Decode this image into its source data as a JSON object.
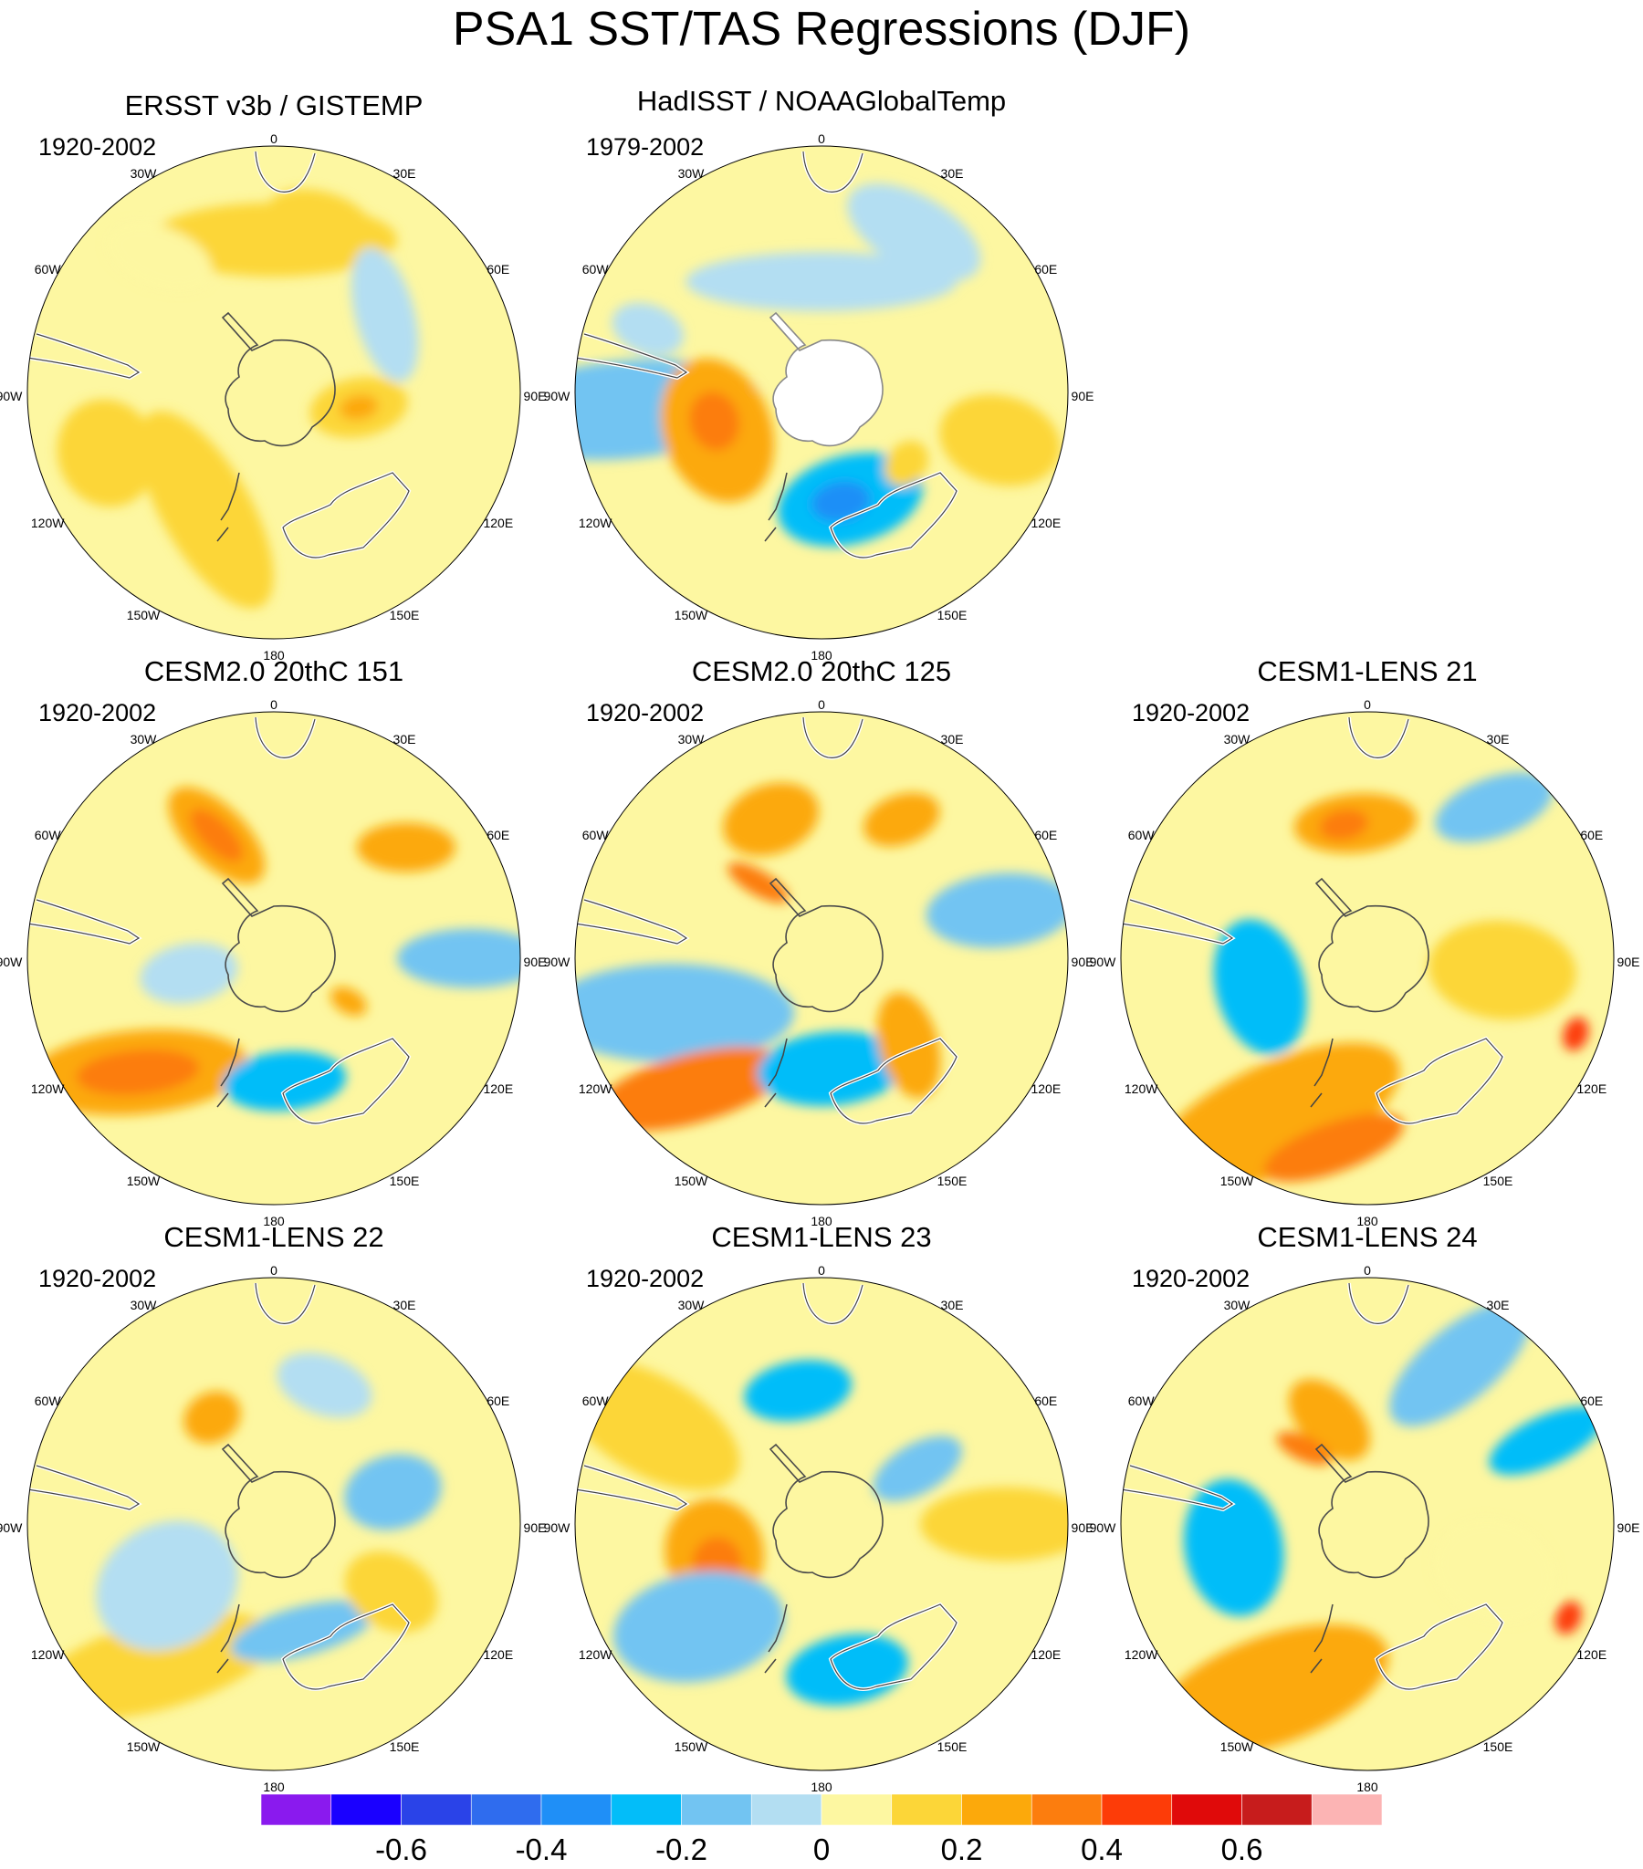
{
  "figure": {
    "title": "PSA1 SST/TAS Regressions (DJF)"
  },
  "longitude_labels": [
    "0",
    "30E",
    "60E",
    "90E",
    "120E",
    "150E",
    "180",
    "150W",
    "120W",
    "90W",
    "60W",
    "30W"
  ],
  "panels": [
    {
      "id": "p0",
      "title": "ERSST v3b / GISTEMP",
      "period": "1920-2002",
      "masked_pole": false,
      "blobs": [
        {
          "lon": 0,
          "r": 0.62,
          "a": 0.5,
          "b": 0.15,
          "rot": 0,
          "v": 0.12
        },
        {
          "lon": 15,
          "r": 0.72,
          "a": 0.22,
          "b": 0.12,
          "rot": 0,
          "v": 0.12
        },
        {
          "lon": 55,
          "r": 0.55,
          "a": 0.28,
          "b": 0.12,
          "rot": 20,
          "v": -0.08
        },
        {
          "lon": 100,
          "r": 0.35,
          "a": 0.2,
          "b": 0.12,
          "rot": 70,
          "v": 0.16
        },
        {
          "lon": 100,
          "r": 0.35,
          "a": 0.08,
          "b": 0.05,
          "rot": 70,
          "v": 0.22
        },
        {
          "lon": -110,
          "r": 0.72,
          "a": 0.22,
          "b": 0.2,
          "rot": 0,
          "v": 0.12
        },
        {
          "lon": -100,
          "r": 0.8,
          "a": 0.07,
          "b": 0.05,
          "rot": 0,
          "v": 0.18
        },
        {
          "lon": -150,
          "r": 0.55,
          "a": 0.45,
          "b": 0.18,
          "rot": 30,
          "v": 0.12
        },
        {
          "lon": -40,
          "r": 0.72,
          "a": 0.22,
          "b": 0.12,
          "rot": 60,
          "v": 0.06
        }
      ]
    },
    {
      "id": "p1",
      "title": "HadISST / NOAAGlobalTemp",
      "period": "1979-2002",
      "masked_pole": true,
      "blobs": [
        {
          "lon": 0,
          "r": 0.45,
          "a": 0.55,
          "b": 0.12,
          "rot": 0,
          "v": -0.1
        },
        {
          "lon": 30,
          "r": 0.75,
          "a": 0.3,
          "b": 0.15,
          "rot": 0,
          "v": -0.05
        },
        {
          "lon": -95,
          "r": 0.8,
          "a": 0.2,
          "b": 0.55,
          "rot": 0,
          "v": -0.2
        },
        {
          "lon": -110,
          "r": 0.45,
          "a": 0.3,
          "b": 0.22,
          "rot": 0,
          "v": 0.22
        },
        {
          "lon": -105,
          "r": 0.45,
          "a": 0.12,
          "b": 0.1,
          "rot": 0,
          "v": 0.3
        },
        {
          "lon": 165,
          "r": 0.45,
          "a": 0.3,
          "b": 0.18,
          "rot": 0,
          "v": -0.25
        },
        {
          "lon": 170,
          "r": 0.45,
          "a": 0.12,
          "b": 0.08,
          "rot": 0,
          "v": -0.33
        },
        {
          "lon": 130,
          "r": 0.45,
          "a": 0.1,
          "b": 0.08,
          "rot": 0,
          "v": 0.15
        },
        {
          "lon": 105,
          "r": 0.75,
          "a": 0.18,
          "b": 0.25,
          "rot": 0,
          "v": 0.12
        },
        {
          "lon": -70,
          "r": 0.75,
          "a": 0.1,
          "b": 0.15,
          "rot": 0,
          "v": -0.07
        }
      ]
    },
    {
      "id": "p2",
      "title": "CESM2.0 20thC 151",
      "period": "1920-2002",
      "masked_pole": false,
      "blobs": [
        {
          "lon": -25,
          "r": 0.55,
          "a": 0.12,
          "b": 0.25,
          "rot": -20,
          "v": 0.2
        },
        {
          "lon": -25,
          "r": 0.55,
          "a": 0.06,
          "b": 0.14,
          "rot": -20,
          "v": 0.3
        },
        {
          "lon": 50,
          "r": 0.7,
          "a": 0.1,
          "b": 0.2,
          "rot": 40,
          "v": 0.25
        },
        {
          "lon": 90,
          "r": 0.8,
          "a": 0.12,
          "b": 0.3,
          "rot": 0,
          "v": -0.2
        },
        {
          "lon": -130,
          "r": 0.72,
          "a": 0.17,
          "b": 0.45,
          "rot": 35,
          "v": 0.22
        },
        {
          "lon": -130,
          "r": 0.72,
          "a": 0.09,
          "b": 0.25,
          "rot": 35,
          "v": 0.3
        },
        {
          "lon": 175,
          "r": 0.5,
          "a": 0.25,
          "b": 0.12,
          "rot": 0,
          "v": -0.22
        },
        {
          "lon": -100,
          "r": 0.35,
          "a": 0.12,
          "b": 0.2,
          "rot": 0,
          "v": -0.1
        },
        {
          "lon": 120,
          "r": 0.35,
          "a": 0.05,
          "b": 0.08,
          "rot": 0,
          "v": 0.2
        }
      ]
    },
    {
      "id": "p3",
      "title": "CESM2.0 20thC 125",
      "period": "1920-2002",
      "masked_pole": false,
      "blobs": [
        {
          "lon": -20,
          "r": 0.6,
          "a": 0.2,
          "b": 0.14,
          "rot": 0,
          "v": 0.2
        },
        {
          "lon": -40,
          "r": 0.4,
          "a": 0.05,
          "b": 0.14,
          "rot": -20,
          "v": 0.3
        },
        {
          "lon": 30,
          "r": 0.65,
          "a": 0.1,
          "b": 0.16,
          "rot": 40,
          "v": 0.2
        },
        {
          "lon": 75,
          "r": 0.75,
          "a": 0.15,
          "b": 0.3,
          "rot": 10,
          "v": -0.2
        },
        {
          "lon": -110,
          "r": 0.65,
          "a": 0.2,
          "b": 0.5,
          "rot": 20,
          "v": -0.2
        },
        {
          "lon": -135,
          "r": 0.75,
          "a": 0.14,
          "b": 0.4,
          "rot": 30,
          "v": 0.3
        },
        {
          "lon": 175,
          "r": 0.45,
          "a": 0.3,
          "b": 0.15,
          "rot": 0,
          "v": -0.22
        },
        {
          "lon": 135,
          "r": 0.5,
          "a": 0.12,
          "b": 0.22,
          "rot": 30,
          "v": 0.22
        }
      ]
    },
    {
      "id": "p4",
      "title": "CESM1-LENS 21",
      "period": "1920-2002",
      "masked_pole": false,
      "blobs": [
        {
          "lon": -5,
          "r": 0.55,
          "a": 0.25,
          "b": 0.12,
          "rot": 0,
          "v": 0.22
        },
        {
          "lon": -10,
          "r": 0.55,
          "a": 0.1,
          "b": 0.06,
          "rot": 0,
          "v": 0.3
        },
        {
          "lon": 40,
          "r": 0.8,
          "a": 0.12,
          "b": 0.25,
          "rot": 30,
          "v": -0.2
        },
        {
          "lon": -105,
          "r": 0.45,
          "a": 0.28,
          "b": 0.18,
          "rot": 0,
          "v": -0.25
        },
        {
          "lon": -150,
          "r": 0.75,
          "a": 0.22,
          "b": 0.55,
          "rot": 35,
          "v": 0.25
        },
        {
          "lon": -170,
          "r": 0.78,
          "a": 0.1,
          "b": 0.3,
          "rot": 60,
          "v": 0.33
        },
        {
          "lon": 110,
          "r": 0.9,
          "a": 0.07,
          "b": 0.05,
          "rot": 0,
          "v": 0.48
        },
        {
          "lon": 95,
          "r": 0.55,
          "a": 0.2,
          "b": 0.3,
          "rot": 0,
          "v": 0.13
        }
      ]
    },
    {
      "id": "p5",
      "title": "CESM1-LENS 22",
      "period": "1920-2002",
      "masked_pole": false,
      "blobs": [
        {
          "lon": -30,
          "r": 0.5,
          "a": 0.12,
          "b": 0.1,
          "rot": 0,
          "v": 0.22
        },
        {
          "lon": -140,
          "r": 0.75,
          "a": 0.18,
          "b": 0.5,
          "rot": 35,
          "v": 0.15
        },
        {
          "lon": -120,
          "r": 0.5,
          "a": 0.25,
          "b": 0.3,
          "rot": 0,
          "v": -0.1
        },
        {
          "lon": 165,
          "r": 0.45,
          "a": 0.3,
          "b": 0.1,
          "rot": 0,
          "v": -0.2
        },
        {
          "lon": 75,
          "r": 0.5,
          "a": 0.15,
          "b": 0.2,
          "rot": 0,
          "v": -0.12
        },
        {
          "lon": 120,
          "r": 0.55,
          "a": 0.15,
          "b": 0.2,
          "rot": 0,
          "v": 0.12
        },
        {
          "lon": 20,
          "r": 0.6,
          "a": 0.2,
          "b": 0.12,
          "rot": 0,
          "v": -0.07
        }
      ]
    },
    {
      "id": "p6",
      "title": "CESM1-LENS 23",
      "period": "1920-2002",
      "masked_pole": false,
      "blobs": [
        {
          "lon": -10,
          "r": 0.55,
          "a": 0.22,
          "b": 0.12,
          "rot": 0,
          "v": -0.25
        },
        {
          "lon": -105,
          "r": 0.45,
          "a": 0.22,
          "b": 0.2,
          "rot": 0,
          "v": 0.25
        },
        {
          "lon": -110,
          "r": 0.45,
          "a": 0.1,
          "b": 0.1,
          "rot": 0,
          "v": 0.33
        },
        {
          "lon": -130,
          "r": 0.65,
          "a": 0.22,
          "b": 0.35,
          "rot": 30,
          "v": -0.15
        },
        {
          "lon": 170,
          "r": 0.6,
          "a": 0.25,
          "b": 0.14,
          "rot": 0,
          "v": -0.25
        },
        {
          "lon": 90,
          "r": 0.75,
          "a": 0.15,
          "b": 0.35,
          "rot": 0,
          "v": 0.15
        },
        {
          "lon": 60,
          "r": 0.45,
          "a": 0.1,
          "b": 0.2,
          "rot": 0,
          "v": -0.2
        },
        {
          "lon": -60,
          "r": 0.8,
          "a": 0.2,
          "b": 0.4,
          "rot": 0,
          "v": 0.1
        }
      ]
    },
    {
      "id": "p7",
      "title": "CESM1-LENS 24",
      "period": "1920-2002",
      "masked_pole": false,
      "blobs": [
        {
          "lon": -20,
          "r": 0.45,
          "a": 0.12,
          "b": 0.2,
          "rot": -25,
          "v": 0.22
        },
        {
          "lon": -40,
          "r": 0.4,
          "a": 0.05,
          "b": 0.12,
          "rot": -25,
          "v": 0.38
        },
        {
          "lon": -100,
          "r": 0.55,
          "a": 0.28,
          "b": 0.2,
          "rot": 0,
          "v": -0.28
        },
        {
          "lon": -150,
          "r": 0.78,
          "a": 0.22,
          "b": 0.5,
          "rot": 40,
          "v": 0.22
        },
        {
          "lon": 30,
          "r": 0.75,
          "a": 0.15,
          "b": 0.35,
          "rot": 20,
          "v": -0.2
        },
        {
          "lon": 65,
          "r": 0.8,
          "a": 0.1,
          "b": 0.25,
          "rot": 0,
          "v": -0.25
        },
        {
          "lon": 115,
          "r": 0.9,
          "a": 0.07,
          "b": 0.05,
          "rot": 0,
          "v": 0.4
        },
        {
          "lon": 110,
          "r": 0.55,
          "a": 0.2,
          "b": 0.25,
          "rot": 0,
          "v": 0.08
        }
      ]
    }
  ],
  "colorbar": {
    "levels": [
      -0.7,
      -0.6,
      -0.5,
      -0.4,
      -0.3,
      -0.2,
      -0.1,
      0,
      0.1,
      0.2,
      0.3,
      0.4,
      0.5,
      0.6,
      0.7
    ],
    "colors": [
      "#8a1aee",
      "#1a00ff",
      "#2a43e8",
      "#2f6cee",
      "#1f8ff7",
      "#03bdf9",
      "#72c4f2",
      "#b3def2",
      "#fdf7a1",
      "#fcd638",
      "#fca90b",
      "#fc7d0e",
      "#fd3c08",
      "#e00a0a",
      "#c71c1c",
      "#fcb4b4"
    ],
    "tick_labels": [
      "-0.6",
      "-0.4",
      "-0.2",
      "0",
      "0.2",
      "0.4",
      "0.6"
    ],
    "tick_values": [
      -0.6,
      -0.4,
      -0.2,
      0,
      0.2,
      0.4,
      0.6
    ]
  }
}
